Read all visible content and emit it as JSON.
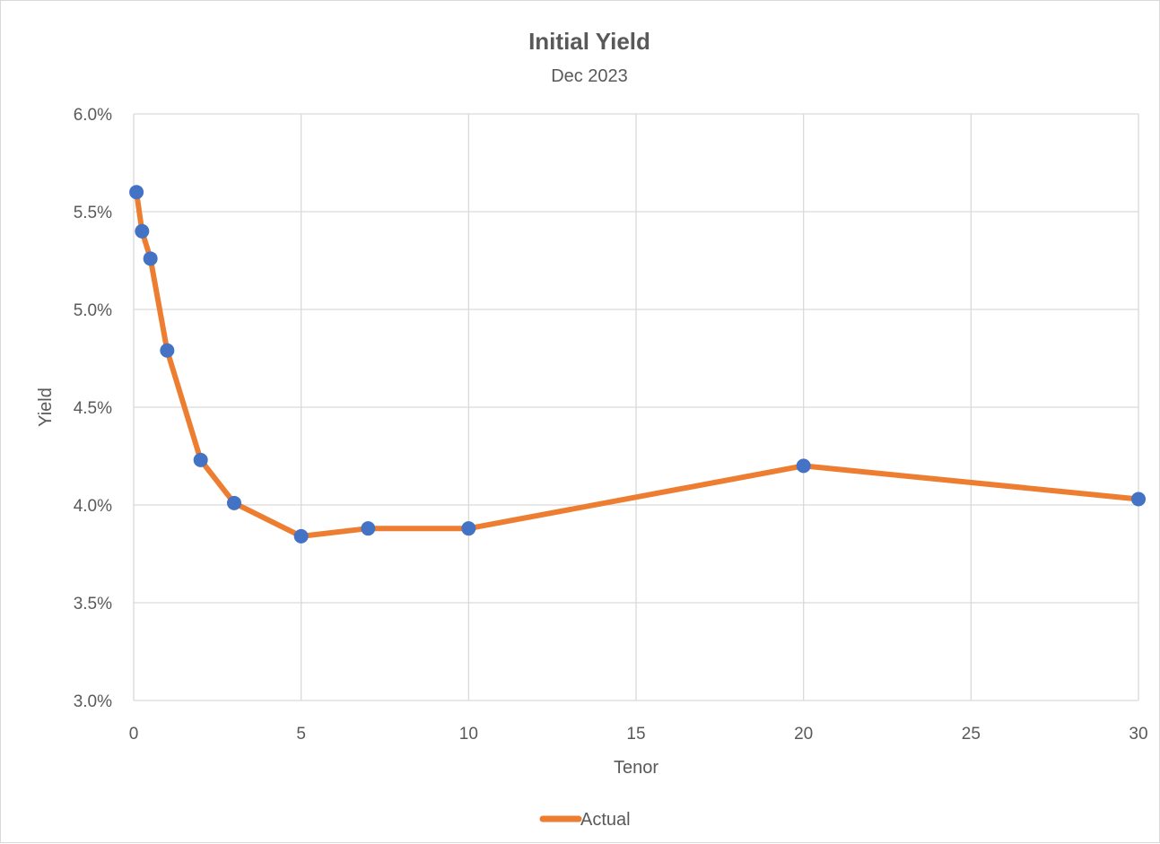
{
  "chart_data": {
    "type": "line",
    "title": "Initial Yield",
    "subtitle": "Dec 2023",
    "xlabel": "Tenor",
    "ylabel": "Yield",
    "xlim": [
      0,
      30
    ],
    "ylim": [
      0.03,
      0.06
    ],
    "x_ticks": [
      0,
      5,
      10,
      15,
      20,
      25,
      30
    ],
    "x_tick_labels": [
      "0",
      "5",
      "10",
      "15",
      "20",
      "25",
      "30"
    ],
    "y_ticks": [
      0.03,
      0.035,
      0.04,
      0.045,
      0.05,
      0.055,
      0.06
    ],
    "y_tick_labels": [
      "3.0%",
      "3.5%",
      "4.0%",
      "4.5%",
      "5.0%",
      "5.5%",
      "6.0%"
    ],
    "grid": true,
    "legend_position": "bottom",
    "series": [
      {
        "name": "Actual",
        "color": "#ed7d31",
        "marker_color": "#4472c4",
        "x": [
          0.083,
          0.25,
          0.5,
          1,
          2,
          3,
          5,
          7,
          10,
          20,
          30
        ],
        "y": [
          0.056,
          0.054,
          0.0526,
          0.0479,
          0.0423,
          0.0401,
          0.0384,
          0.0388,
          0.0388,
          0.042,
          0.0403
        ]
      }
    ]
  }
}
